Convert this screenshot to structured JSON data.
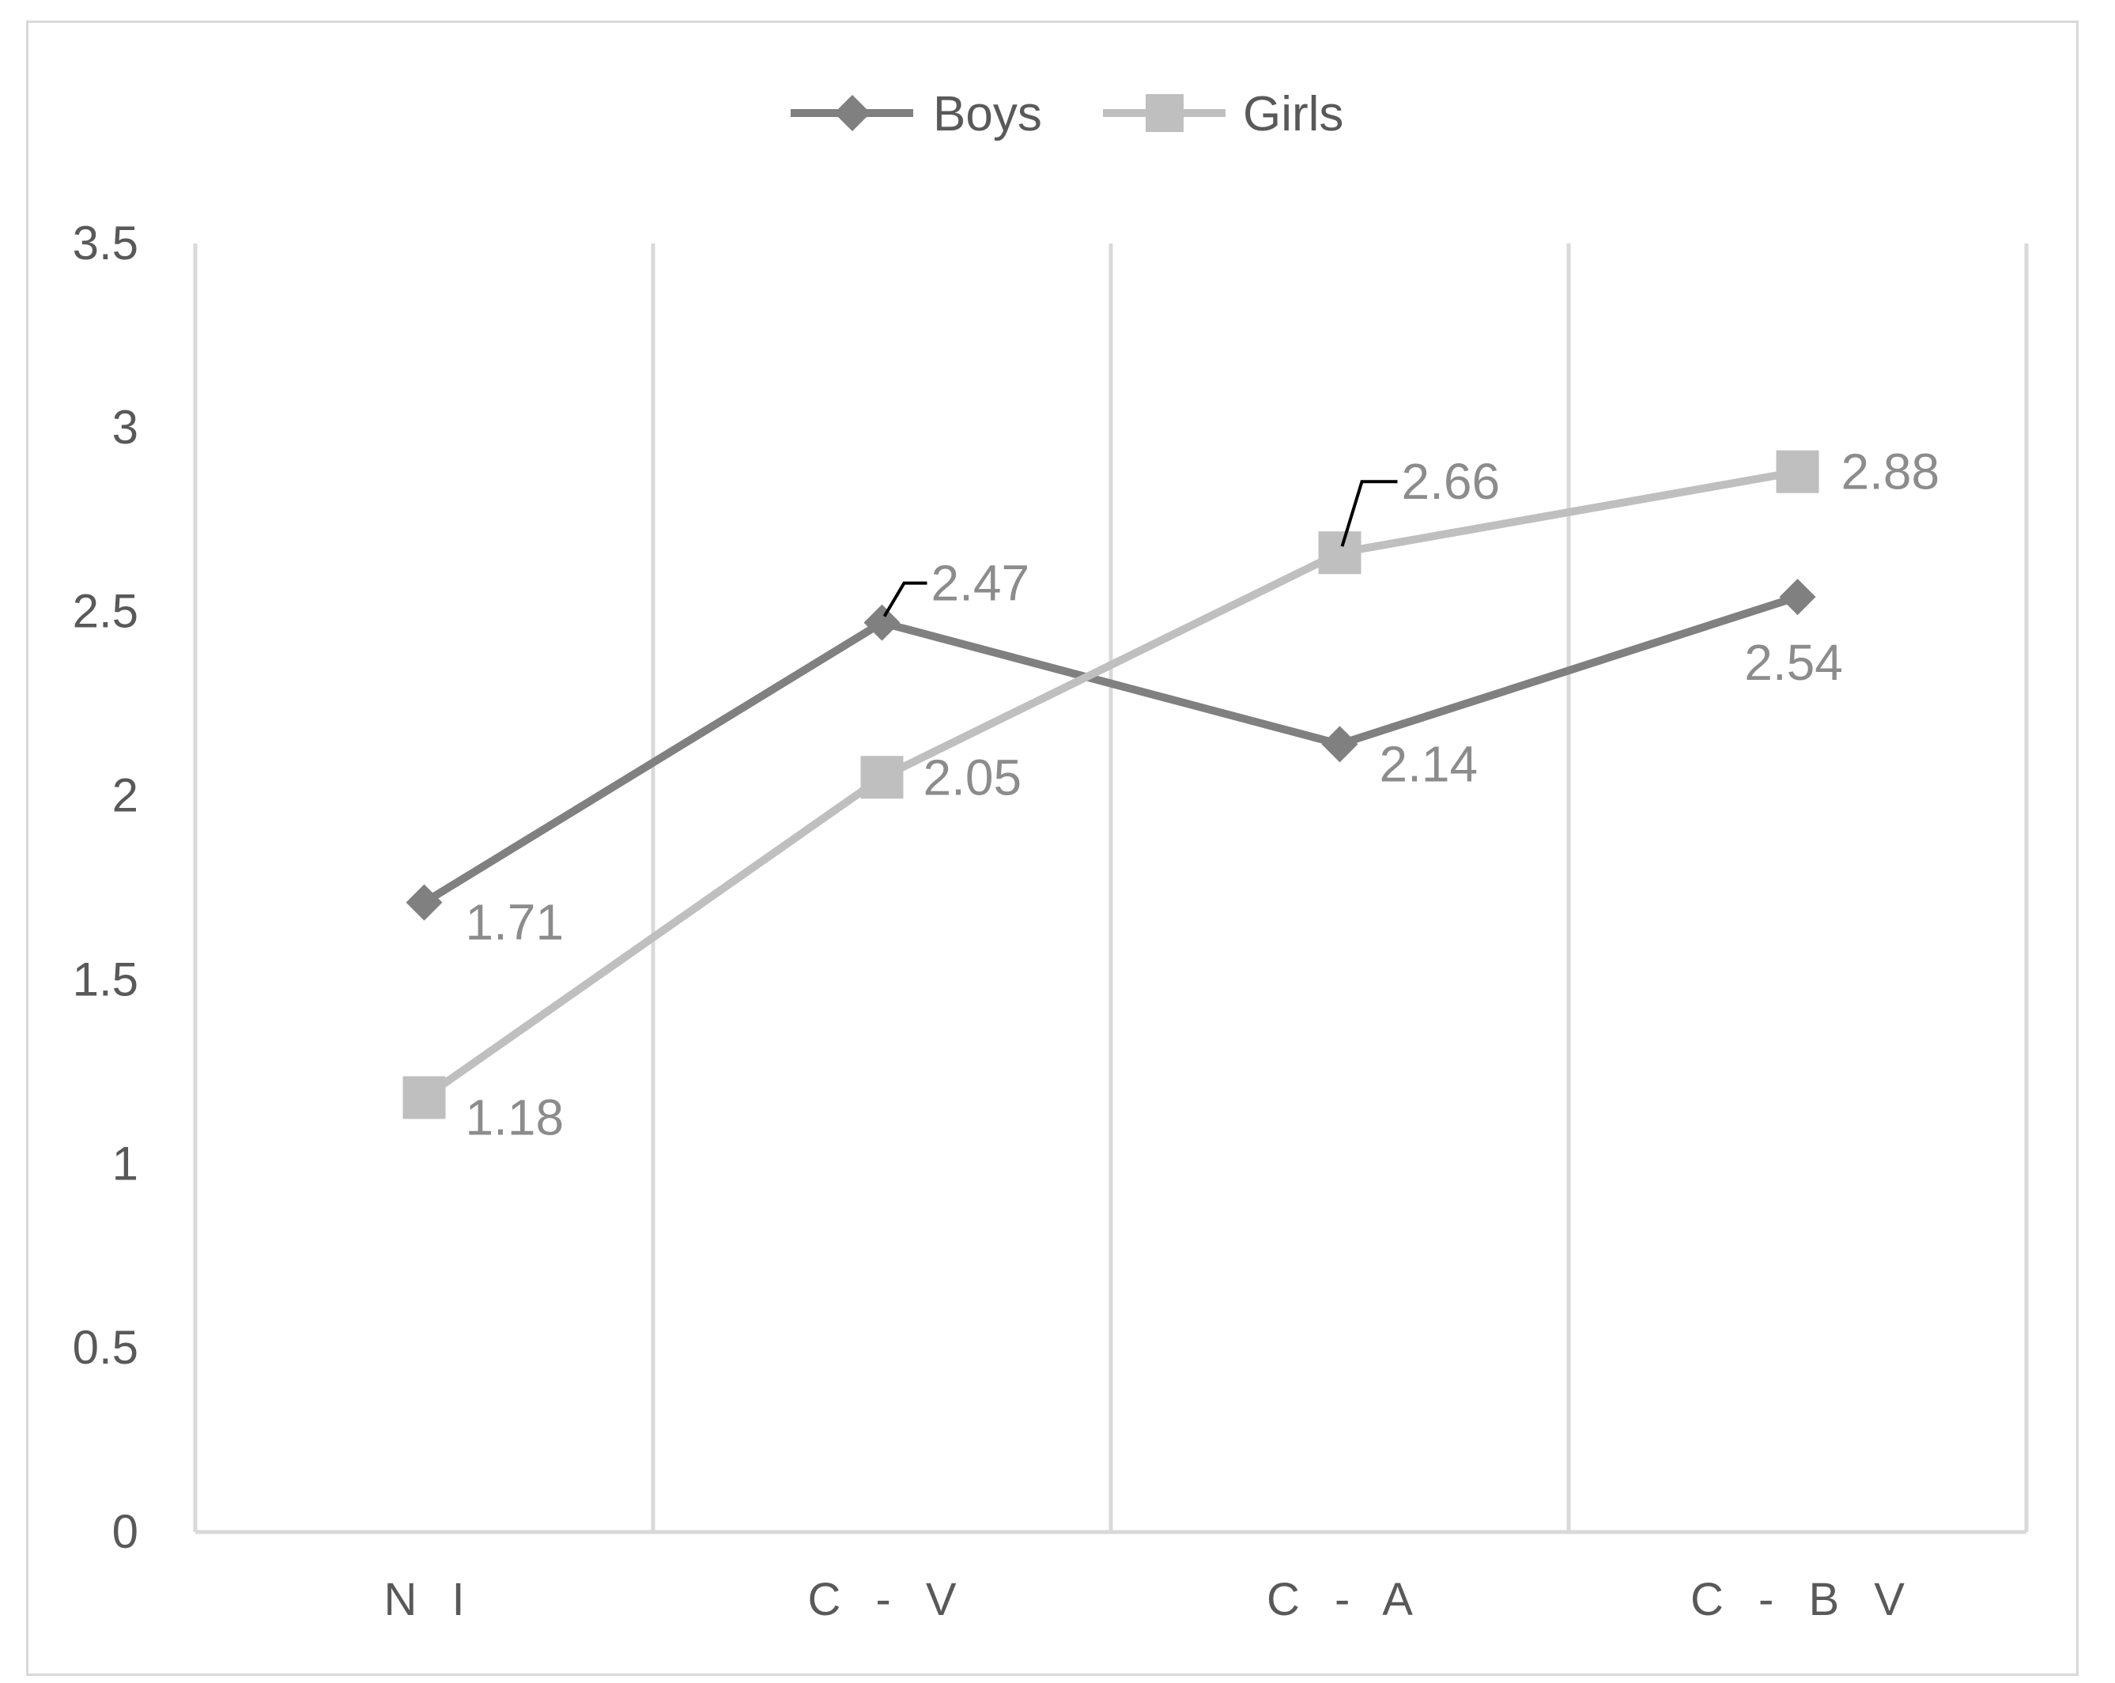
{
  "chart_data": {
    "type": "line",
    "title": "",
    "xlabel": "",
    "ylabel": "",
    "categories": [
      "N I",
      "C - V",
      "C - A",
      "C - B V"
    ],
    "ylim": [
      0,
      3.5
    ],
    "yticks": [
      "0",
      "0.5",
      "1",
      "1.5",
      "2",
      "2.5",
      "3",
      "3.5"
    ],
    "grid": "vertical",
    "legend_position": "top",
    "series": [
      {
        "name": "Boys",
        "values": [
          1.71,
          2.47,
          2.14,
          2.54
        ],
        "labels": [
          "1.71",
          "2.47",
          "2.14",
          "2.54"
        ],
        "color": "#808080",
        "marker": "diamond"
      },
      {
        "name": "Girls",
        "values": [
          1.18,
          2.05,
          2.66,
          2.88
        ],
        "labels": [
          "1.18",
          "2.05",
          "2.66",
          "2.88"
        ],
        "color": "#bfbfbf",
        "marker": "square"
      }
    ]
  }
}
